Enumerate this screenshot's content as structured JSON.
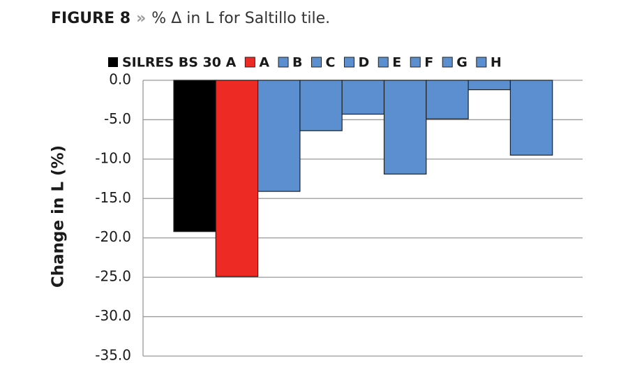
{
  "chart_data": {
    "type": "bar",
    "figure_label": "FIGURE 8",
    "separator": "»",
    "title": "% Δ in L for Saltillo tile.",
    "ylabel": "Change in L (%)",
    "categories": [
      null
    ],
    "series": [
      {
        "name": "SILRES BS 30 A",
        "color": "#000000",
        "values": [
          -19.2
        ]
      },
      {
        "name": "A",
        "color": "#ee2a24",
        "values": [
          -24.9
        ]
      },
      {
        "name": "B",
        "color": "#5b8fcf",
        "values": [
          -14.1
        ]
      },
      {
        "name": "C",
        "color": "#5b8fcf",
        "values": [
          -6.4
        ]
      },
      {
        "name": "D",
        "color": "#5b8fcf",
        "values": [
          -4.3
        ]
      },
      {
        "name": "E",
        "color": "#5b8fcf",
        "values": [
          -11.9
        ]
      },
      {
        "name": "F",
        "color": "#5b8fcf",
        "values": [
          -4.9
        ]
      },
      {
        "name": "G",
        "color": "#5b8fcf",
        "values": [
          -1.2
        ]
      },
      {
        "name": "H",
        "color": "#5b8fcf",
        "values": [
          -9.5
        ]
      }
    ],
    "ylim": [
      -35,
      0
    ],
    "yticks": [
      {
        "value": 0,
        "label": "0.0"
      },
      {
        "value": -5,
        "label": "-5.0"
      },
      {
        "value": -10,
        "label": "-10.0"
      },
      {
        "value": -15,
        "label": "-15.0"
      },
      {
        "value": -20,
        "label": "-20.0"
      },
      {
        "value": -25,
        "label": "-25.0"
      },
      {
        "value": -30,
        "label": "-30.0"
      },
      {
        "value": -35,
        "label": "-35.0"
      }
    ],
    "grid": true
  }
}
